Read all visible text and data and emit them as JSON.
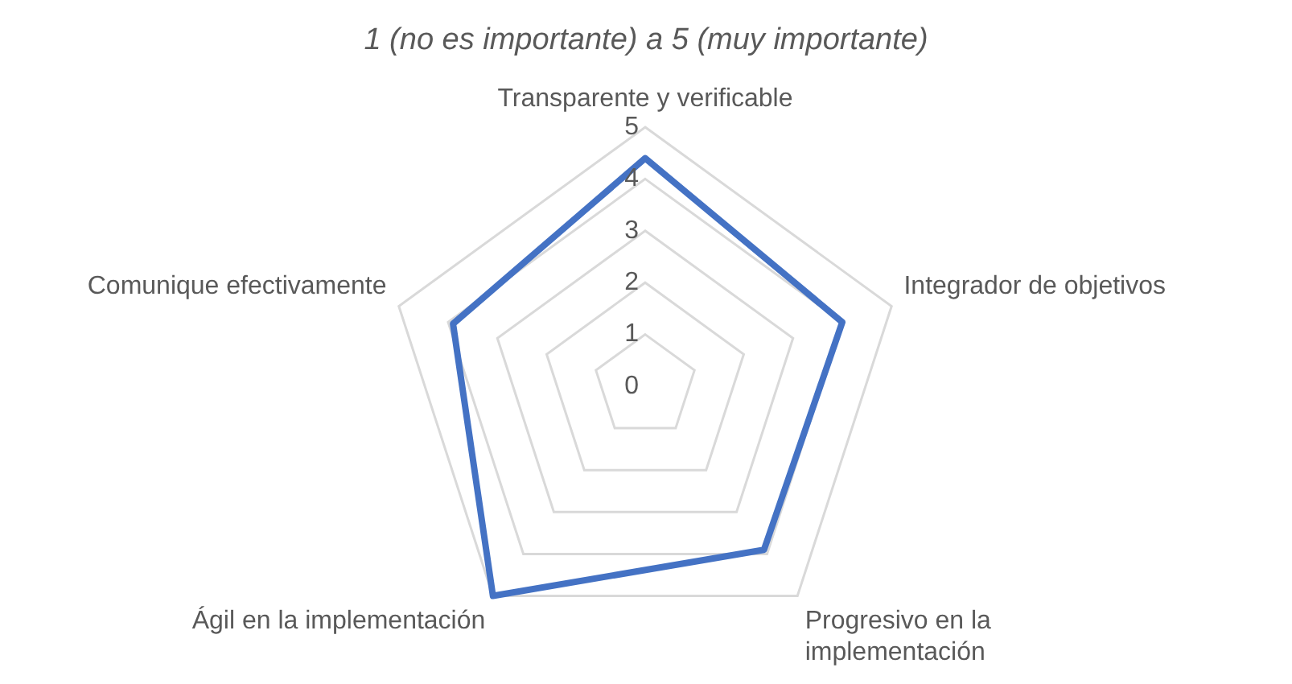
{
  "chart_data": {
    "type": "radar",
    "title": "1 (no es importante) a 5 (muy importante)",
    "categories": [
      "Transparente y verificable",
      "Integrador de objetivos",
      "Progresivo en la implementación",
      "Ágil en la implementación",
      "Comunique efectivamente"
    ],
    "series": [
      {
        "color": "#4472c4",
        "values": [
          4.4,
          4.0,
          3.9,
          5.0,
          3.9
        ]
      }
    ],
    "ylim": [
      0,
      5
    ],
    "yticks": [
      0,
      1,
      2,
      3,
      4,
      5
    ],
    "grid": true,
    "legend": false,
    "marker": "none",
    "line_style": "solid"
  }
}
